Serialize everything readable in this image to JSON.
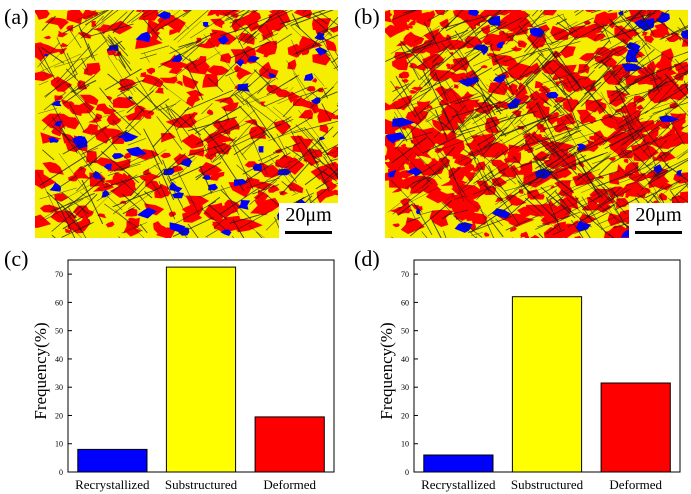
{
  "panels": {
    "a": {
      "label": "(a)",
      "scalebar": "20μm"
    },
    "b": {
      "label": "(b)",
      "scalebar": "20μm"
    },
    "c": {
      "label": "(c)"
    },
    "d": {
      "label": "(d)"
    }
  },
  "colors": {
    "recrystallized": "#0000ff",
    "substructured": "#ffff00",
    "deformed": "#ff0000"
  },
  "chart_data": [
    {
      "type": "bar",
      "panel": "c",
      "categories": [
        "Recrystallized",
        "Substructured",
        "Deformed"
      ],
      "values": [
        8,
        72.5,
        19.5
      ],
      "ylabel": "Frequency(%)",
      "xlabel": "",
      "ylim": [
        0,
        75
      ],
      "yticks": [
        0,
        10,
        20,
        30,
        40,
        50,
        60,
        70
      ],
      "colors": [
        "#0000ff",
        "#ffff00",
        "#ff0000"
      ],
      "grid": false
    },
    {
      "type": "bar",
      "panel": "d",
      "categories": [
        "Recrystallized",
        "Substructured",
        "Deformed"
      ],
      "values": [
        6,
        62,
        31.5
      ],
      "ylabel": "Frequency(%)",
      "xlabel": "",
      "ylim": [
        0,
        75
      ],
      "yticks": [
        0,
        10,
        20,
        30,
        40,
        50,
        60,
        70
      ],
      "colors": [
        "#0000ff",
        "#ffff00",
        "#ff0000"
      ],
      "grid": false
    }
  ]
}
